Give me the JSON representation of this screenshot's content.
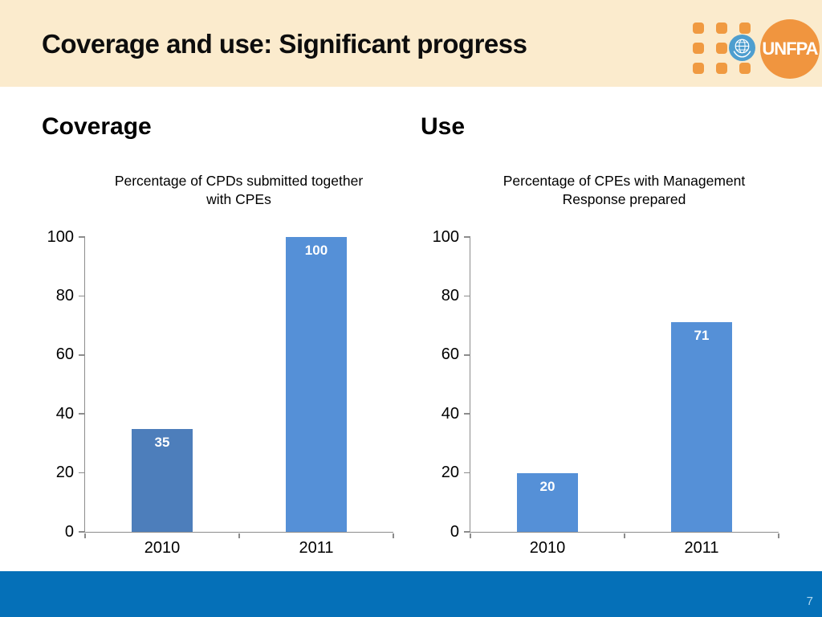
{
  "slide": {
    "title": "Coverage and use: Significant progress",
    "page_number": "7"
  },
  "sections": [
    {
      "heading": "Coverage"
    },
    {
      "heading": "Use"
    }
  ],
  "logo": {
    "text": "UNFPA",
    "icons": [
      "unfpa-dot-grid",
      "un-emblem-icon",
      "unfpa-circle-logo"
    ]
  },
  "colors": {
    "header_bg": "#FBEBCD",
    "footer_bg": "#0570B8",
    "logo_orange": "#F0953F",
    "dot_orange": "#F09A41",
    "un_blue": "#4E9ECF",
    "bar_dark_blue": "#4D7EBB",
    "bar_light_blue": "#5590D7",
    "axis_gray": "#8C8C8C",
    "page_number_text": "#AFD7EF"
  },
  "chart_data": [
    {
      "type": "bar",
      "title": "Percentage of CPDs submitted together with CPEs",
      "title_lines": [
        "Percentage of CPDs submitted together",
        "with CPEs"
      ],
      "categories": [
        "2010",
        "2011"
      ],
      "values": [
        35,
        100
      ],
      "bar_colors": [
        "#4D7EBB",
        "#5590D7"
      ],
      "value_label_color": "#FFFFFF",
      "xlabel": "",
      "ylabel": "",
      "ylim": [
        0,
        100
      ],
      "yticks": [
        0,
        20,
        40,
        60,
        80,
        100
      ],
      "grid": false,
      "legend": "none"
    },
    {
      "type": "bar",
      "title": "Percentage of CPEs with Management Response prepared",
      "title_lines": [
        "Percentage of CPEs with Management",
        "Response prepared"
      ],
      "categories": [
        "2010",
        "2011"
      ],
      "values": [
        20,
        71
      ],
      "bar_colors": [
        "#5590D7",
        "#5590D7"
      ],
      "value_label_color": "#FFFFFF",
      "xlabel": "",
      "ylabel": "",
      "ylim": [
        0,
        100
      ],
      "yticks": [
        0,
        20,
        40,
        60,
        80,
        100
      ],
      "grid": false,
      "legend": "none"
    }
  ]
}
